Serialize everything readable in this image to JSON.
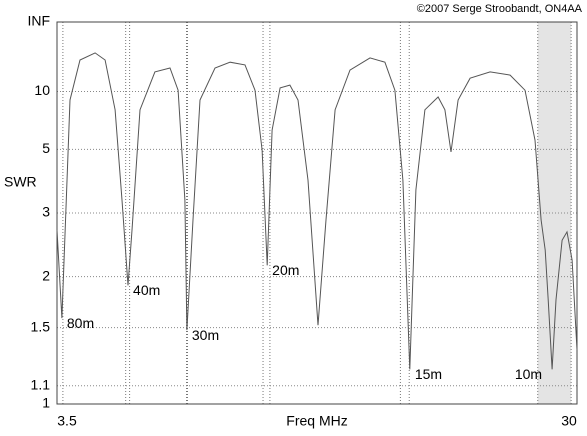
{
  "chart_data": {
    "type": "line",
    "credit": "©2007 Serge Stroobandt, ON4AA",
    "y_label": "SWR",
    "x_label": "Freq MHz",
    "yscale": "reflection",
    "ylim": [
      1,
      "INF"
    ],
    "yticks": [
      1,
      1.1,
      1.5,
      2,
      3,
      5,
      10
    ],
    "xlim": [
      3.5,
      30
    ],
    "xticks": [
      3.5,
      30
    ],
    "grid": true,
    "color": "#555555",
    "bands": [
      {
        "name": "80m",
        "range": [
          3.5,
          3.8
        ]
      },
      {
        "name": "40m",
        "range": [
          7.0,
          7.2
        ]
      },
      {
        "name": "30m",
        "range": [
          10.1,
          10.15
        ]
      },
      {
        "name": "20m",
        "range": [
          14.0,
          14.35
        ]
      },
      {
        "name": "15m",
        "range": [
          21.0,
          21.45
        ]
      },
      {
        "name": "10m",
        "range": [
          28.0,
          29.7
        ]
      }
    ],
    "x": [
      3.5,
      3.75,
      4.16,
      4.67,
      5.44,
      5.95,
      6.46,
      6.81,
      7.12,
      7.32,
      7.73,
      8.49,
      9.26,
      9.67,
      10.02,
      10.12,
      10.43,
      10.79,
      11.55,
      12.32,
      13.08,
      13.59,
      13.95,
      14.21,
      14.46,
      14.87,
      15.37,
      15.78,
      16.29,
      16.8,
      17.21,
      17.67,
      18.43,
      19.45,
      20.21,
      20.72,
      21.13,
      21.48,
      21.79,
      22.25,
      22.92,
      23.27,
      23.58,
      23.94,
      24.55,
      25.57,
      26.59,
      27.35,
      27.86,
      28.17,
      28.38,
      28.53,
      28.73,
      28.93,
      29.24,
      29.49,
      29.75,
      30
    ],
    "values": [
      2.67,
      1.58,
      8.8,
      19.1,
      23.7,
      19.1,
      7.7,
      3.29,
      1.9,
      2.67,
      7.7,
      14.3,
      15.6,
      10.2,
      3.29,
      1.48,
      2.86,
      8.8,
      15.6,
      18.0,
      16.8,
      10.2,
      4.97,
      2.14,
      6.07,
      10.6,
      11.1,
      8.8,
      3.83,
      1.52,
      2.86,
      7.7,
      14.9,
      20.3,
      18.0,
      10.2,
      3.83,
      1.2,
      3.55,
      7.7,
      9.19,
      7.7,
      4.88,
      8.8,
      12.6,
      14.3,
      13.4,
      10.2,
      5.47,
      2.86,
      2.35,
      1.75,
      1.2,
      1.75,
      2.5,
      2.64,
      2.21,
      1.33
    ]
  }
}
